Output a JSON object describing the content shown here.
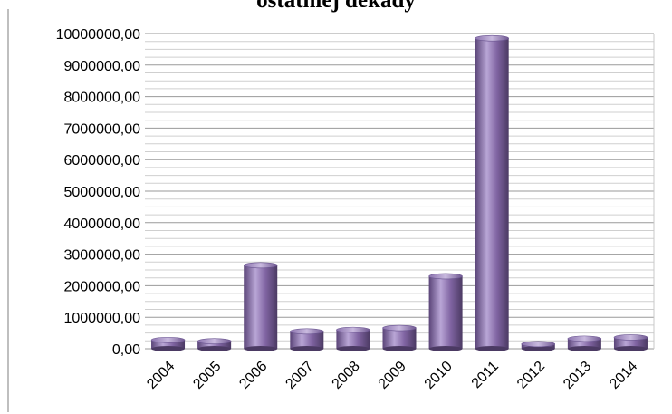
{
  "chart_data": {
    "type": "bar",
    "title": "ostatniej dekady",
    "categories": [
      "2004",
      "2005",
      "2006",
      "2007",
      "2008",
      "2009",
      "2010",
      "2011",
      "2012",
      "2013",
      "2014"
    ],
    "values": [
      280000,
      240000,
      2650000,
      550000,
      600000,
      660000,
      2300000,
      9850000,
      150000,
      320000,
      360000
    ],
    "ylim": [
      0,
      10000000
    ],
    "yticks": [
      "0,00",
      "1000000,00",
      "2000000,00",
      "3000000,00",
      "4000000,00",
      "5000000,00",
      "6000000,00",
      "7000000,00",
      "8000000,00",
      "9000000,00",
      "10000000,00"
    ],
    "grid": true,
    "colors": {
      "bar": "#8064a2",
      "bar_light": "#b9a6d6",
      "bar_dark": "#4b3a63",
      "grid": "#a6a6a6",
      "axis": "#808080",
      "text": "#000000"
    }
  }
}
